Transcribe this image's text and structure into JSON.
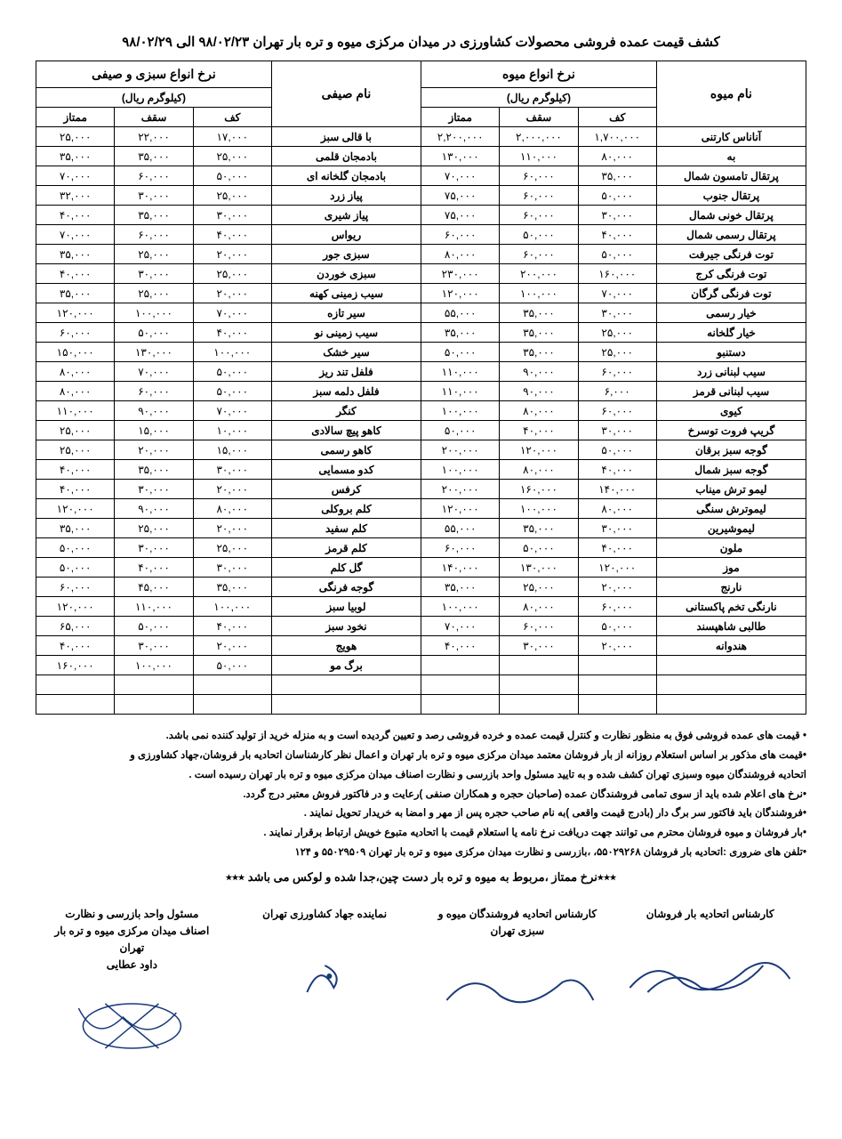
{
  "title": "کشف قیمت عمده فروشی محصولات کشاورزی در میدان مرکزی میوه و تره بار تهران ۹۸/۰۲/۲۳ الی ۹۸/۰۲/۲۹",
  "headers": {
    "fruit_section": "نرخ انواع میوه",
    "veg_section": "نرخ انواع سبزی و صیفی",
    "price_unit_fruit": "(کیلوگرم ریال)",
    "price_unit_veg": "(کیلوگرم ریال)",
    "fruit_name": "نام میوه",
    "veg_name": "نام صیفی",
    "kaf": "کف",
    "saghf": "سقف",
    "momtaz": "ممتاز"
  },
  "rows": [
    {
      "fruit": "آناناس کارتنی",
      "f_kaf": "۱,۷۰۰,۰۰۰",
      "f_saghf": "۲,۰۰۰,۰۰۰",
      "f_momtaz": "۲,۲۰۰,۰۰۰",
      "veg": "با قالی سبز",
      "v_kaf": "۱۷,۰۰۰",
      "v_saghf": "۲۲,۰۰۰",
      "v_momtaz": "۲۵,۰۰۰"
    },
    {
      "fruit": "به",
      "f_kaf": "۸۰,۰۰۰",
      "f_saghf": "۱۱۰,۰۰۰",
      "f_momtaz": "۱۳۰,۰۰۰",
      "veg": "بادمجان قلمی",
      "v_kaf": "۲۵,۰۰۰",
      "v_saghf": "۳۵,۰۰۰",
      "v_momtaz": "۳۵,۰۰۰"
    },
    {
      "fruit": "پرتقال تامسون شمال",
      "f_kaf": "۳۵,۰۰۰",
      "f_saghf": "۶۰,۰۰۰",
      "f_momtaz": "۷۰,۰۰۰",
      "veg": "بادمجان گلخانه ای",
      "v_kaf": "۵۰,۰۰۰",
      "v_saghf": "۶۰,۰۰۰",
      "v_momtaz": "۷۰,۰۰۰"
    },
    {
      "fruit": "پرتقال جنوب",
      "f_kaf": "۵۰,۰۰۰",
      "f_saghf": "۶۰,۰۰۰",
      "f_momtaz": "۷۵,۰۰۰",
      "veg": "پیاز زرد",
      "v_kaf": "۲۵,۰۰۰",
      "v_saghf": "۳۰,۰۰۰",
      "v_momtaz": "۳۲,۰۰۰"
    },
    {
      "fruit": "پرتقال خونی شمال",
      "f_kaf": "۳۰,۰۰۰",
      "f_saghf": "۶۰,۰۰۰",
      "f_momtaz": "۷۵,۰۰۰",
      "veg": "پیاز شیری",
      "v_kaf": "۳۰,۰۰۰",
      "v_saghf": "۳۵,۰۰۰",
      "v_momtaz": "۴۰,۰۰۰"
    },
    {
      "fruit": "پرتقال رسمی شمال",
      "f_kaf": "۴۰,۰۰۰",
      "f_saghf": "۵۰,۰۰۰",
      "f_momtaz": "۶۰,۰۰۰",
      "veg": "ریواس",
      "v_kaf": "۴۰,۰۰۰",
      "v_saghf": "۶۰,۰۰۰",
      "v_momtaz": "۷۰,۰۰۰"
    },
    {
      "fruit": "توت فرنگی جیرفت",
      "f_kaf": "۵۰,۰۰۰",
      "f_saghf": "۶۰,۰۰۰",
      "f_momtaz": "۸۰,۰۰۰",
      "veg": "سبزی جور",
      "v_kaf": "۲۰,۰۰۰",
      "v_saghf": "۲۵,۰۰۰",
      "v_momtaz": "۳۵,۰۰۰"
    },
    {
      "fruit": "توت فرنگی کرج",
      "f_kaf": "۱۶۰,۰۰۰",
      "f_saghf": "۲۰۰,۰۰۰",
      "f_momtaz": "۲۳۰,۰۰۰",
      "veg": "سبزی خوردن",
      "v_kaf": "۲۵,۰۰۰",
      "v_saghf": "۳۰,۰۰۰",
      "v_momtaz": "۴۰,۰۰۰"
    },
    {
      "fruit": "توت فرنگی گرگان",
      "f_kaf": "۷۰,۰۰۰",
      "f_saghf": "۱۰۰,۰۰۰",
      "f_momtaz": "۱۲۰,۰۰۰",
      "veg": "سیب زمینی کهنه",
      "v_kaf": "۲۰,۰۰۰",
      "v_saghf": "۲۵,۰۰۰",
      "v_momtaz": "۳۵,۰۰۰"
    },
    {
      "fruit": "خیار رسمی",
      "f_kaf": "۳۰,۰۰۰",
      "f_saghf": "۳۵,۰۰۰",
      "f_momtaz": "۵۵,۰۰۰",
      "veg": "سیر تازه",
      "v_kaf": "۷۰,۰۰۰",
      "v_saghf": "۱۰۰,۰۰۰",
      "v_momtaz": "۱۲۰,۰۰۰"
    },
    {
      "fruit": "خیار گلخانه",
      "f_kaf": "۲۵,۰۰۰",
      "f_saghf": "۳۵,۰۰۰",
      "f_momtaz": "۳۵,۰۰۰",
      "veg": "سیب زمینی نو",
      "v_kaf": "۴۰,۰۰۰",
      "v_saghf": "۵۰,۰۰۰",
      "v_momtaz": "۶۰,۰۰۰"
    },
    {
      "fruit": "دستنبو",
      "f_kaf": "۲۵,۰۰۰",
      "f_saghf": "۳۵,۰۰۰",
      "f_momtaz": "۵۰,۰۰۰",
      "veg": "سیر خشک",
      "v_kaf": "۱۰۰,۰۰۰",
      "v_saghf": "۱۳۰,۰۰۰",
      "v_momtaz": "۱۵۰,۰۰۰"
    },
    {
      "fruit": "سیب لبنانی زرد",
      "f_kaf": "۶۰,۰۰۰",
      "f_saghf": "۹۰,۰۰۰",
      "f_momtaz": "۱۱۰,۰۰۰",
      "veg": "فلفل تند ریز",
      "v_kaf": "۵۰,۰۰۰",
      "v_saghf": "۷۰,۰۰۰",
      "v_momtaz": "۸۰,۰۰۰"
    },
    {
      "fruit": "سیب لبنانی قرمز",
      "f_kaf": "۶,۰۰۰",
      "f_saghf": "۹۰,۰۰۰",
      "f_momtaz": "۱۱۰,۰۰۰",
      "veg": "فلفل دلمه سبز",
      "v_kaf": "۵۰,۰۰۰",
      "v_saghf": "۶۰,۰۰۰",
      "v_momtaz": "۸۰,۰۰۰"
    },
    {
      "fruit": "کیوی",
      "f_kaf": "۶۰,۰۰۰",
      "f_saghf": "۸۰,۰۰۰",
      "f_momtaz": "۱۰۰,۰۰۰",
      "veg": "کنگر",
      "v_kaf": "۷۰,۰۰۰",
      "v_saghf": "۹۰,۰۰۰",
      "v_momtaz": "۱۱۰,۰۰۰"
    },
    {
      "fruit": "گریپ فروت توسرخ",
      "f_kaf": "۳۰,۰۰۰",
      "f_saghf": "۴۰,۰۰۰",
      "f_momtaz": "۵۰,۰۰۰",
      "veg": "کاهو پیچ سالادی",
      "v_kaf": "۱۰,۰۰۰",
      "v_saghf": "۱۵,۰۰۰",
      "v_momtaz": "۲۵,۰۰۰"
    },
    {
      "fruit": "گوجه سبز برقان",
      "f_kaf": "۵۰,۰۰۰",
      "f_saghf": "۱۲۰,۰۰۰",
      "f_momtaz": "۲۰۰,۰۰۰",
      "veg": "کاهو رسمی",
      "v_kaf": "۱۵,۰۰۰",
      "v_saghf": "۲۰,۰۰۰",
      "v_momtaz": "۲۵,۰۰۰"
    },
    {
      "fruit": "گوجه سبز شمال",
      "f_kaf": "۴۰,۰۰۰",
      "f_saghf": "۸۰,۰۰۰",
      "f_momtaz": "۱۰۰,۰۰۰",
      "veg": "کدو مسمایی",
      "v_kaf": "۳۰,۰۰۰",
      "v_saghf": "۳۵,۰۰۰",
      "v_momtaz": "۴۰,۰۰۰"
    },
    {
      "fruit": "لیمو ترش میناب",
      "f_kaf": "۱۴۰,۰۰۰",
      "f_saghf": "۱۶۰,۰۰۰",
      "f_momtaz": "۲۰۰,۰۰۰",
      "veg": "کرفس",
      "v_kaf": "۲۰,۰۰۰",
      "v_saghf": "۳۰,۰۰۰",
      "v_momtaz": "۴۰,۰۰۰"
    },
    {
      "fruit": "لیموترش سنگی",
      "f_kaf": "۸۰,۰۰۰",
      "f_saghf": "۱۰۰,۰۰۰",
      "f_momtaz": "۱۲۰,۰۰۰",
      "veg": "کلم بروکلی",
      "v_kaf": "۸۰,۰۰۰",
      "v_saghf": "۹۰,۰۰۰",
      "v_momtaz": "۱۲۰,۰۰۰"
    },
    {
      "fruit": "لیموشیرین",
      "f_kaf": "۳۰,۰۰۰",
      "f_saghf": "۳۵,۰۰۰",
      "f_momtaz": "۵۵,۰۰۰",
      "veg": "کلم سفید",
      "v_kaf": "۲۰,۰۰۰",
      "v_saghf": "۲۵,۰۰۰",
      "v_momtaz": "۳۵,۰۰۰"
    },
    {
      "fruit": "ملون",
      "f_kaf": "۴۰,۰۰۰",
      "f_saghf": "۵۰,۰۰۰",
      "f_momtaz": "۶۰,۰۰۰",
      "veg": "کلم قرمز",
      "v_kaf": "۲۵,۰۰۰",
      "v_saghf": "۳۰,۰۰۰",
      "v_momtaz": "۵۰,۰۰۰"
    },
    {
      "fruit": "موز",
      "f_kaf": "۱۲۰,۰۰۰",
      "f_saghf": "۱۳۰,۰۰۰",
      "f_momtaz": "۱۴۰,۰۰۰",
      "veg": "گل کلم",
      "v_kaf": "۳۰,۰۰۰",
      "v_saghf": "۴۰,۰۰۰",
      "v_momtaz": "۵۰,۰۰۰"
    },
    {
      "fruit": "نارنج",
      "f_kaf": "۲۰,۰۰۰",
      "f_saghf": "۲۵,۰۰۰",
      "f_momtaz": "۳۵,۰۰۰",
      "veg": "گوجه فرنگی",
      "v_kaf": "۳۵,۰۰۰",
      "v_saghf": "۴۵,۰۰۰",
      "v_momtaz": "۶۰,۰۰۰"
    },
    {
      "fruit": "نارنگی تخم پاکستانی",
      "f_kaf": "۶۰,۰۰۰",
      "f_saghf": "۸۰,۰۰۰",
      "f_momtaz": "۱۰۰,۰۰۰",
      "veg": "لوبیا سبز",
      "v_kaf": "۱۰۰,۰۰۰",
      "v_saghf": "۱۱۰,۰۰۰",
      "v_momtaz": "۱۲۰,۰۰۰"
    },
    {
      "fruit": "طالبی شاهپسند",
      "f_kaf": "۵۰,۰۰۰",
      "f_saghf": "۶۰,۰۰۰",
      "f_momtaz": "۷۰,۰۰۰",
      "veg": "نخود سبز",
      "v_kaf": "۴۰,۰۰۰",
      "v_saghf": "۵۰,۰۰۰",
      "v_momtaz": "۶۵,۰۰۰"
    },
    {
      "fruit": "هندوانه",
      "f_kaf": "۲۰,۰۰۰",
      "f_saghf": "۳۰,۰۰۰",
      "f_momtaz": "۴۰,۰۰۰",
      "veg": "هویج",
      "v_kaf": "۲۰,۰۰۰",
      "v_saghf": "۳۰,۰۰۰",
      "v_momtaz": "۴۰,۰۰۰"
    },
    {
      "fruit": "",
      "f_kaf": "",
      "f_saghf": "",
      "f_momtaz": "",
      "veg": "برگ مو",
      "v_kaf": "۵۰,۰۰۰",
      "v_saghf": "۱۰۰,۰۰۰",
      "v_momtaz": "۱۶۰,۰۰۰"
    }
  ],
  "notes": [
    "• قیمت های عمده فروشی فوق به منظور نظارت و کنترل قیمت عمده و خرده فروشی رصد و تعیین گردیده است و به منزله خرید از تولید کننده نمی باشد.",
    "•قیمت های مذکور بر اساس استعلام روزانه از بار فروشان معتمد میدان مرکزی میوه و تره بار تهران و اعمال نظر کارشناسان اتحادیه بار فروشان،جهاد کشاورزی و",
    "اتحادیه فروشندگان میوه وسبزی تهران کشف شده و به تایید مسئول واحد بازرسی و نظارت اصناف میدان مرکزی میوه و تره بار تهران رسیده است .",
    "•نرخ های اعلام شده باید از سوی تمامی فروشندگان عمده (صاحبان حجره و همکاران صنفی )رعایت و در فاکتور فروش معتبر درج گردد.",
    "•فروشندگان باید فاکتور سر برگ دار (بادرج قیمت واقعی )به نام صاحب حجره پس از مهر و امضا به خریدار تحویل نمایند .",
    "•بار فروشان و میوه فروشان محترم می توانند جهت دریافت نرخ نامه یا استعلام قیمت با اتحادیه متبوع خویش ارتباط برقرار نمایند .",
    "•تلفن های ضروری :اتحادیه بار فروشان ۵۵۰۲۹۲۶۸، ،بازرسی و نظارت میدان مرکزی میوه و تره بار تهران ۵۵۰۲۹۵۰۹ و ۱۲۴"
  ],
  "premium_note": "٭٭٭نرخ ممتاز ،مربوط به میوه و تره بار دست چین،جدا شده و لوکس می باشد ٭٭٭",
  "signatures": {
    "s1": {
      "title": "کارشناس اتحادیه بار فروشان",
      "name": ""
    },
    "s2": {
      "title": "کارشناس اتحادیه فروشندگان میوه و",
      "sub": "سبزی تهران",
      "name": ""
    },
    "s3": {
      "title": "نماینده جهاد کشاورزی تهران",
      "name": ""
    },
    "s4": {
      "title": "مسئول واحد بازرسی و نظارت",
      "sub": "اصناف میدان مرکزی میوه و تره بار تهران",
      "name": "داود عطایی"
    }
  }
}
